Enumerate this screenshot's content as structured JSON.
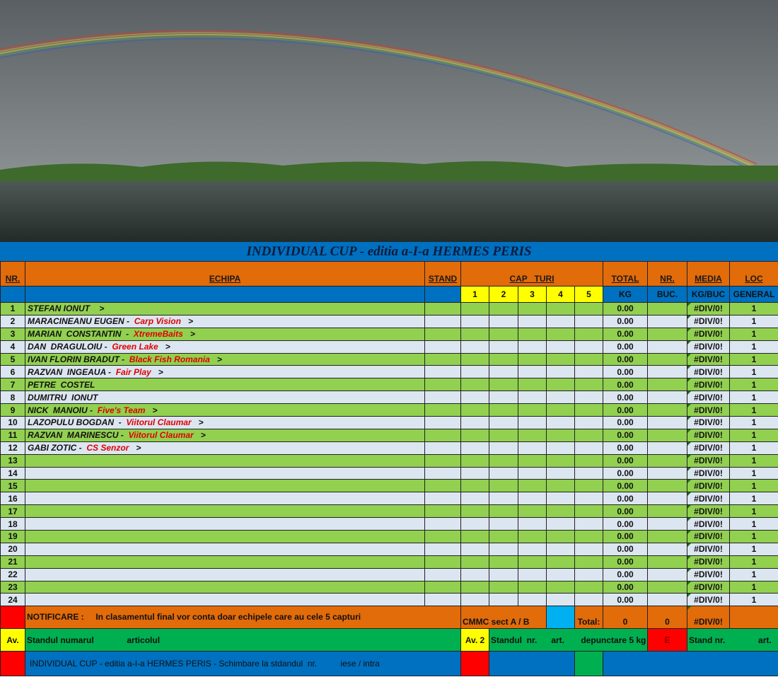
{
  "title": "INDIVIDUAL CUP - editia a-I-a HERMES PERIS",
  "header": {
    "nr": "NR.",
    "echipa": "ECHIPA",
    "stand": "STAND",
    "cap_turi": "CAP   TURI",
    "total": "TOTAL",
    "nr_buc": "NR.",
    "media": "MEDIA",
    "loc": "LOC"
  },
  "subheader": {
    "turns": [
      "1",
      "2",
      "3",
      "4",
      "5"
    ],
    "kg": "KG",
    "buc": "BUC.",
    "kgbuc": "KG/BUC",
    "general": "GENERAL"
  },
  "rows": [
    {
      "nr": "1",
      "name": "STEFAN IONUT",
      "team": "",
      "arrow": ">",
      "total": "0.00",
      "media": "#DIV/0!",
      "loc": "1"
    },
    {
      "nr": "2",
      "name": "MARACINEANU EUGEN - ",
      "team": "Carp Vision",
      "arrow": ">",
      "total": "0.00",
      "media": "#DIV/0!",
      "loc": "1"
    },
    {
      "nr": "3",
      "name": "MARIAN  CONSTANTIN  - ",
      "team": "XtremeBaits",
      "arrow": ">",
      "total": "0.00",
      "media": "#DIV/0!",
      "loc": "1"
    },
    {
      "nr": "4",
      "name": "DAN  DRAGULOIU - ",
      "team": "Green Lake",
      "arrow": ">",
      "total": "0.00",
      "media": "#DIV/0!",
      "loc": "1"
    },
    {
      "nr": "5",
      "name": "IVAN FLORIN BRADUT - ",
      "team": "Black Fish Romania",
      "arrow": ">",
      "total": "0.00",
      "media": "#DIV/0!",
      "loc": "1"
    },
    {
      "nr": "6",
      "name": "RAZVAN  INGEAUA - ",
      "team": "Fair Play",
      "arrow": ">",
      "total": "0.00",
      "media": "#DIV/0!",
      "loc": "1"
    },
    {
      "nr": "7",
      "name": "PETRE  COSTEL",
      "team": "",
      "arrow": "",
      "total": "0.00",
      "media": "#DIV/0!",
      "loc": "1"
    },
    {
      "nr": "8",
      "name": "DUMITRU  IONUT",
      "team": "",
      "arrow": "",
      "total": "0.00",
      "media": "#DIV/0!",
      "loc": "1"
    },
    {
      "nr": "9",
      "name": "NICK  MANOIU - ",
      "team": "Five's Team",
      "arrow": ">",
      "total": "0.00",
      "media": "#DIV/0!",
      "loc": "1"
    },
    {
      "nr": "10",
      "name": "LAZOPULU BOGDAN  - ",
      "team": "Viitorul Claumar",
      "arrow": ">",
      "total": "0.00",
      "media": "#DIV/0!",
      "loc": "1"
    },
    {
      "nr": "11",
      "name": "RAZVAN  MARINESCU - ",
      "team": "Viitorul Claumar",
      "arrow": ">",
      "total": "0.00",
      "media": "#DIV/0!",
      "loc": "1"
    },
    {
      "nr": "12",
      "name": "GABI ZOTIC - ",
      "team": "CS Senzor",
      "arrow": ">",
      "total": "0.00",
      "media": "#DIV/0!",
      "loc": "1"
    },
    {
      "nr": "13",
      "name": "",
      "team": "",
      "arrow": "",
      "total": "0.00",
      "media": "#DIV/0!",
      "loc": "1"
    },
    {
      "nr": "14",
      "name": "",
      "team": "",
      "arrow": "",
      "total": "0.00",
      "media": "#DIV/0!",
      "loc": "1"
    },
    {
      "nr": "15",
      "name": "",
      "team": "",
      "arrow": "",
      "total": "0.00",
      "media": "#DIV/0!",
      "loc": "1"
    },
    {
      "nr": "16",
      "name": "",
      "team": "",
      "arrow": "",
      "total": "0.00",
      "media": "#DIV/0!",
      "loc": "1"
    },
    {
      "nr": "17",
      "name": "",
      "team": "",
      "arrow": "",
      "total": "0.00",
      "media": "#DIV/0!",
      "loc": "1"
    },
    {
      "nr": "18",
      "name": "",
      "team": "",
      "arrow": "",
      "total": "0.00",
      "media": "#DIV/0!",
      "loc": "1"
    },
    {
      "nr": "19",
      "name": "",
      "team": "",
      "arrow": "",
      "total": "0.00",
      "media": "#DIV/0!",
      "loc": "1"
    },
    {
      "nr": "20",
      "name": "",
      "team": "",
      "arrow": "",
      "total": "0.00",
      "media": "#DIV/0!",
      "loc": "1"
    },
    {
      "nr": "21",
      "name": "",
      "team": "",
      "arrow": "",
      "total": "0.00",
      "media": "#DIV/0!",
      "loc": "1"
    },
    {
      "nr": "22",
      "name": "",
      "team": "",
      "arrow": "",
      "total": "0.00",
      "media": "#DIV/0!",
      "loc": "1"
    },
    {
      "nr": "23",
      "name": "",
      "team": "",
      "arrow": "",
      "total": "0.00",
      "media": "#DIV/0!",
      "loc": "1"
    },
    {
      "nr": "24",
      "name": "",
      "team": "",
      "arrow": "",
      "total": "0.00",
      "media": "#DIV/0!",
      "loc": "1"
    }
  ],
  "footer": {
    "notificare": "NOTIFICARE :     In clasamentul final vor conta doar echipele care au cele 5 capturi",
    "cmmc": "CMMC sect  A / B",
    "total_label": "Total:",
    "total_kg": "0",
    "total_buc": "0",
    "total_media": "#DIV/0!",
    "av1": "Av.",
    "av1_text": "Standul numarul              articolul",
    "av2": "Av. 2",
    "av2_text": "Standul  nr.      art.       depunctare 5 kg",
    "e": "E",
    "e_text": "Stand nr.              art.",
    "bottom_text": "INDIVIDUAL CUP - editia a-I-a HERMES PERIS - Schimbare la stdandul  nr.          iese / intra"
  },
  "colors": {
    "orange": "#e26b0a",
    "blue": "#0070c0",
    "green_row": "#92d050",
    "light_row": "#dce6f1",
    "yellow": "#ffff00",
    "red": "#ff0000",
    "team_text": "#e00000"
  }
}
